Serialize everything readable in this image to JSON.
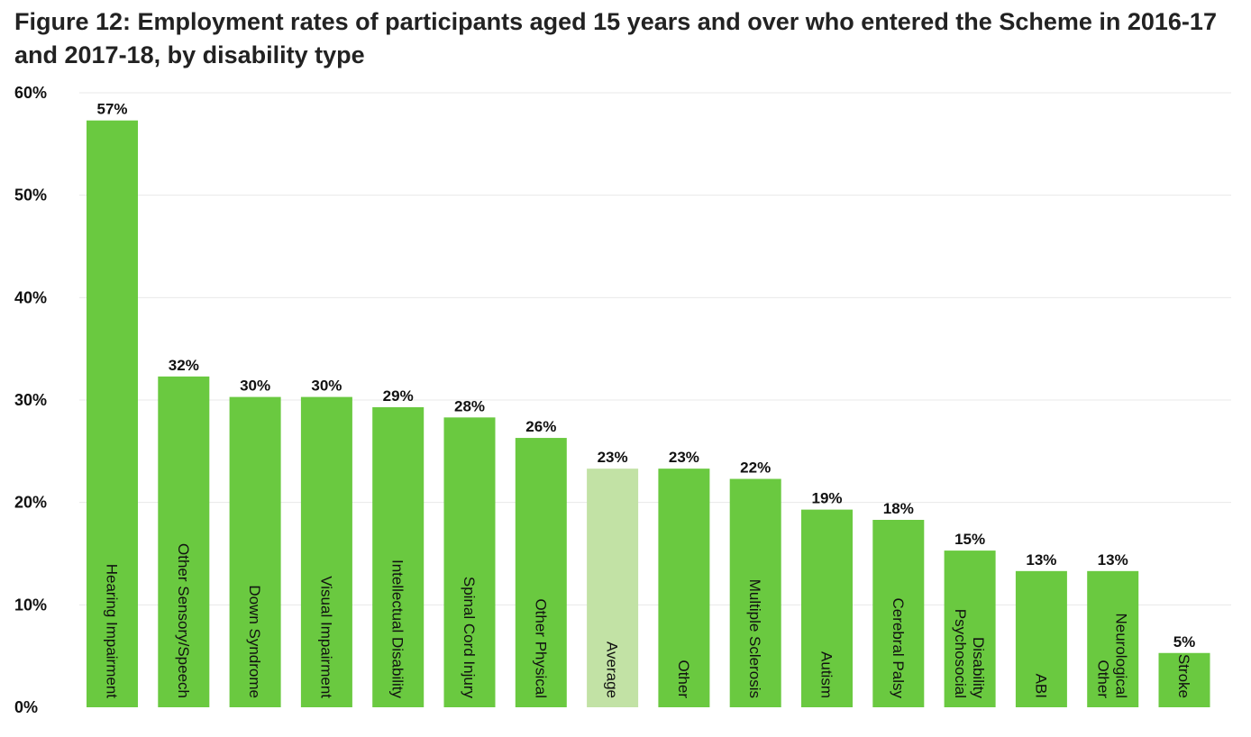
{
  "chart_data": {
    "type": "bar",
    "title": "Figure 12: Employment rates of participants aged 15 years and over who entered the Scheme in 2016-17 and 2017-18, by disability type",
    "xlabel": "",
    "ylabel": "",
    "ylim": [
      0,
      60
    ],
    "yticks": [
      "0%",
      "10%",
      "20%",
      "30%",
      "40%",
      "50%",
      "60%"
    ],
    "ytick_values": [
      0,
      10,
      20,
      30,
      40,
      50,
      60
    ],
    "grid": true,
    "legend": "none",
    "categories": [
      "Hearing Impairment",
      "Other Sensory/Speech",
      "Down Syndrome",
      "Visual Impairment",
      "Intellectual Disability",
      "Spinal Cord Injury",
      "Other Physical",
      "Average",
      "Other",
      "Multiple Sclerosis",
      "Autism",
      "Cerebral Palsy",
      "Psychosocial Disability",
      "ABI",
      "Other Neurological",
      "Stroke"
    ],
    "values": [
      57.3,
      32.3,
      30.3,
      30.3,
      29.3,
      28.3,
      26.3,
      23.3,
      23.3,
      22.3,
      19.3,
      18.3,
      15.3,
      13.3,
      13.3,
      5.3
    ],
    "value_labels": [
      "57%",
      "32%",
      "30%",
      "30%",
      "29%",
      "28%",
      "26%",
      "23%",
      "23%",
      "22%",
      "19%",
      "18%",
      "15%",
      "13%",
      "13%",
      "5%"
    ],
    "colors": {
      "bar": "#6ac940",
      "highlight": "#c2e2a5",
      "grid": "#e8e8e8"
    },
    "highlight_category": "Average"
  }
}
